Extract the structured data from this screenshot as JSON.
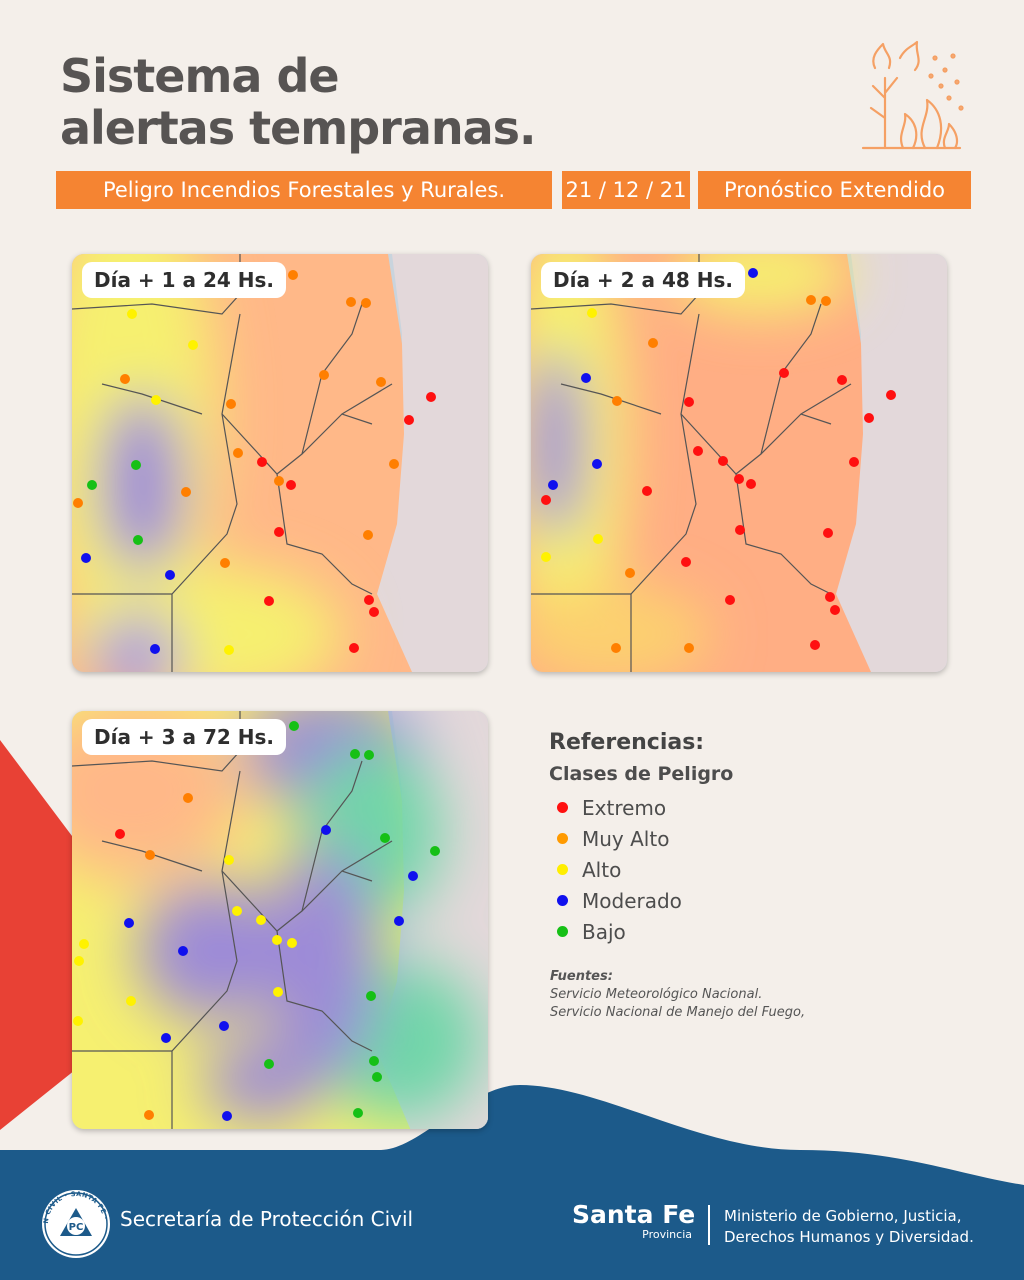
{
  "header": {
    "title_line1": "Sistema de",
    "title_line2": "alertas tempranas.",
    "tags": [
      "Peligro Incendios Forestales y Rurales.",
      "21 / 12 / 21",
      "Pronóstico Extendido"
    ]
  },
  "colors": {
    "orange_accent": "#f58432",
    "footer_blue": "#1c5a8a",
    "red_accent": "#e84135",
    "extremo": "#ff1010",
    "muy_alto": "#ff7f00",
    "alto": "#fff200",
    "moderado": "#1010ee",
    "bajo": "#16c016"
  },
  "maps": [
    {
      "label": "Día + 1 a 24 Hs."
    },
    {
      "label": "Día + 2 a 48 Hs."
    },
    {
      "label": "Día + 3 a 72 Hs."
    }
  ],
  "legend": {
    "title": "Referencias:",
    "subtitle": "Clases de Peligro",
    "items": [
      {
        "label": "Extremo",
        "color": "#ff1010"
      },
      {
        "label": "Muy Alto",
        "color": "#ff9a00"
      },
      {
        "label": "Alto",
        "color": "#ffee00"
      },
      {
        "label": "Moderado",
        "color": "#1010ee"
      },
      {
        "label": "Bajo",
        "color": "#16c016"
      }
    ]
  },
  "sources": {
    "title": "Fuentes:",
    "lines": [
      "Servicio Meteorológico Nacional.",
      "Servicio Nacional de Manejo del Fuego,"
    ]
  },
  "footer": {
    "logo_text": "PROTECCIÓN CIVIL · SANTA FE · ARGENTINA",
    "logo_initials": "PC",
    "secretaria": "Secretaría de Protección Civil",
    "brand_name": "Santa Fe",
    "brand_sub": "Provincia",
    "ministerio_line1": "Ministerio de Gobierno, Justicia,",
    "ministerio_line2": "Derechos Humanos y Diversidad."
  }
}
